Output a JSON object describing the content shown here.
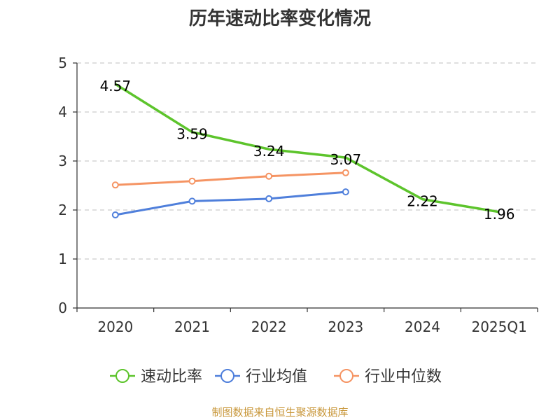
{
  "chart_data": {
    "type": "line",
    "title": "历年速动比率变化情况",
    "categories": [
      "2020",
      "2021",
      "2022",
      "2023",
      "2024",
      "2025Q1"
    ],
    "ylim": [
      0,
      5
    ],
    "yticks": [
      0,
      1,
      2,
      3,
      4,
      5
    ],
    "grid": true,
    "legend_position": "bottom",
    "series": [
      {
        "name": "速动比率",
        "color": "#5dc42c",
        "values": [
          4.57,
          3.59,
          3.24,
          3.07,
          2.22,
          1.96
        ],
        "labels": [
          "4.57",
          "3.59",
          "3.24",
          "3.07",
          "2.22",
          "1.96"
        ],
        "show_markers": false
      },
      {
        "name": "行业均值",
        "color": "#4f7fdb",
        "values": [
          1.9,
          2.18,
          2.23,
          2.37,
          null,
          null
        ],
        "show_markers": true
      },
      {
        "name": "行业中位数",
        "color": "#f59463",
        "values": [
          2.51,
          2.59,
          2.69,
          2.76,
          null,
          null
        ],
        "show_markers": true
      }
    ]
  },
  "source_text": "制图数据来自恒生聚源数据库"
}
